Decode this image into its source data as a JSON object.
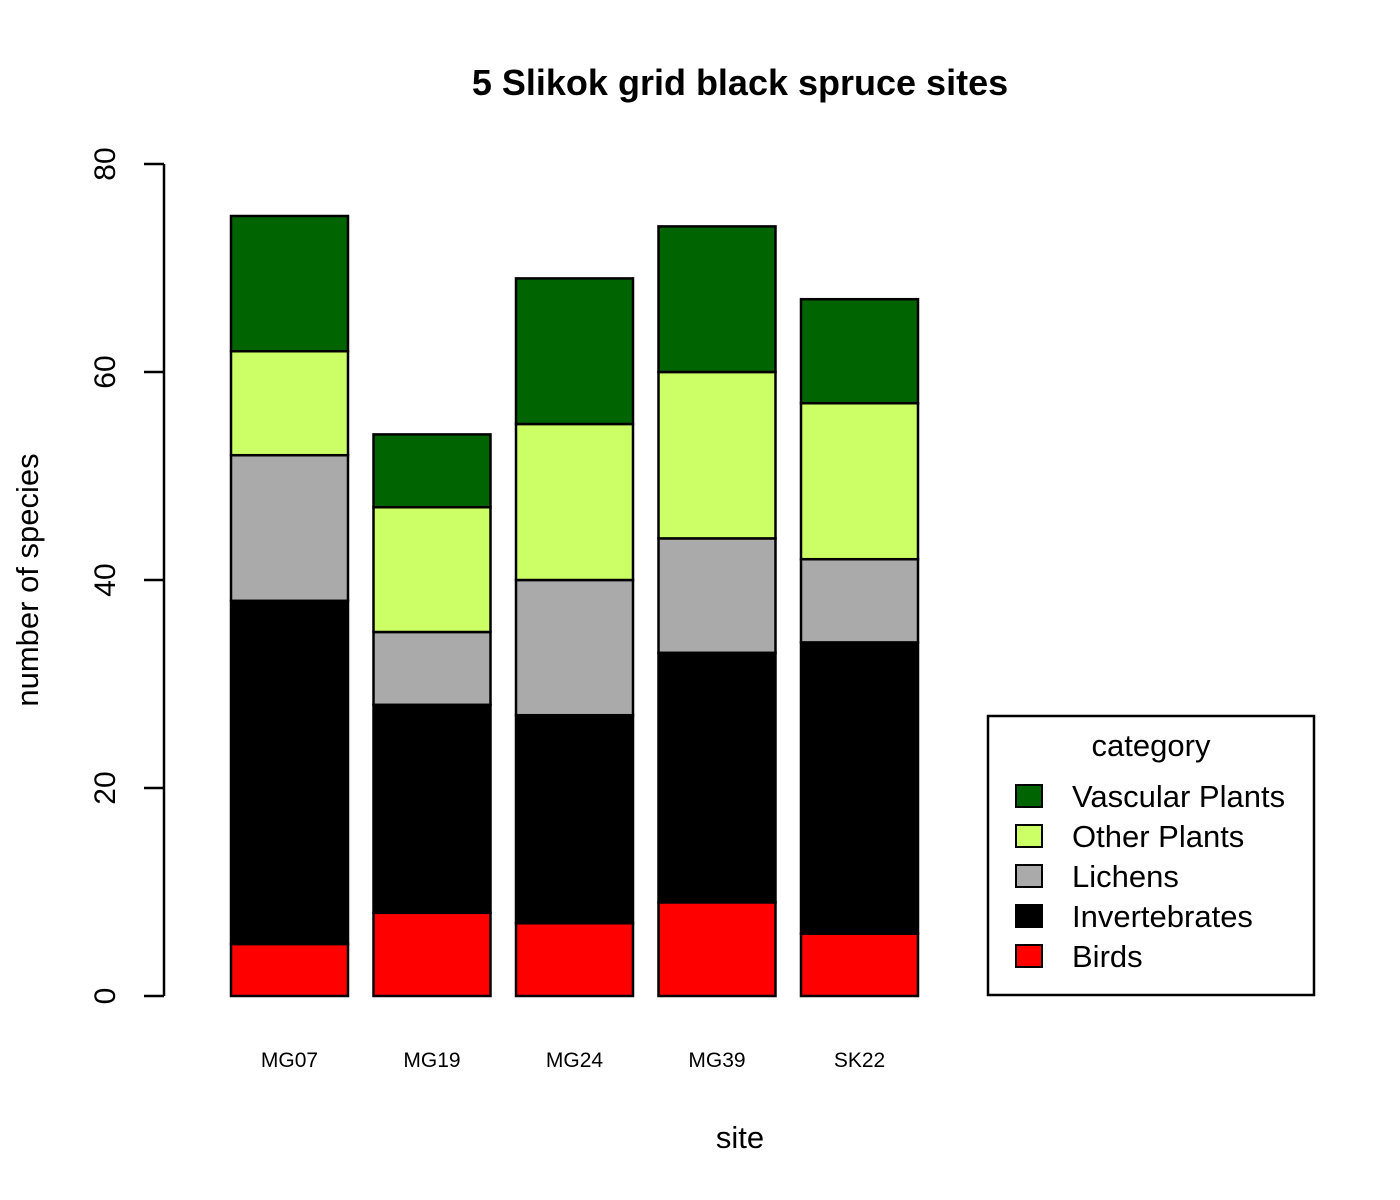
{
  "chart_data": {
    "type": "bar",
    "stacked": true,
    "title": "5 Slikok grid black spruce sites",
    "xlabel": "site",
    "ylabel": "number of species",
    "ylim": [
      0,
      80
    ],
    "yticks": [
      0,
      20,
      40,
      60,
      80
    ],
    "categories": [
      "MG07",
      "MG19",
      "MG24",
      "MG39",
      "SK22"
    ],
    "series": [
      {
        "name": "Birds",
        "color": "#ff0000",
        "values": [
          5,
          8,
          7,
          9,
          6
        ]
      },
      {
        "name": "Invertebrates",
        "color": "#000000",
        "values": [
          33,
          20,
          20,
          24,
          28
        ]
      },
      {
        "name": "Lichens",
        "color": "#aaaaaa",
        "values": [
          14,
          7,
          13,
          11,
          8
        ]
      },
      {
        "name": "Other Plants",
        "color": "#ccff66",
        "values": [
          10,
          12,
          15,
          16,
          15
        ]
      },
      {
        "name": "Vascular Plants",
        "color": "#006400",
        "values": [
          13,
          7,
          14,
          14,
          10
        ]
      }
    ],
    "legend": {
      "title": "category",
      "position": "bottom-right",
      "order": [
        "Vascular Plants",
        "Other Plants",
        "Lichens",
        "Invertebrates",
        "Birds"
      ]
    },
    "grid": false
  }
}
